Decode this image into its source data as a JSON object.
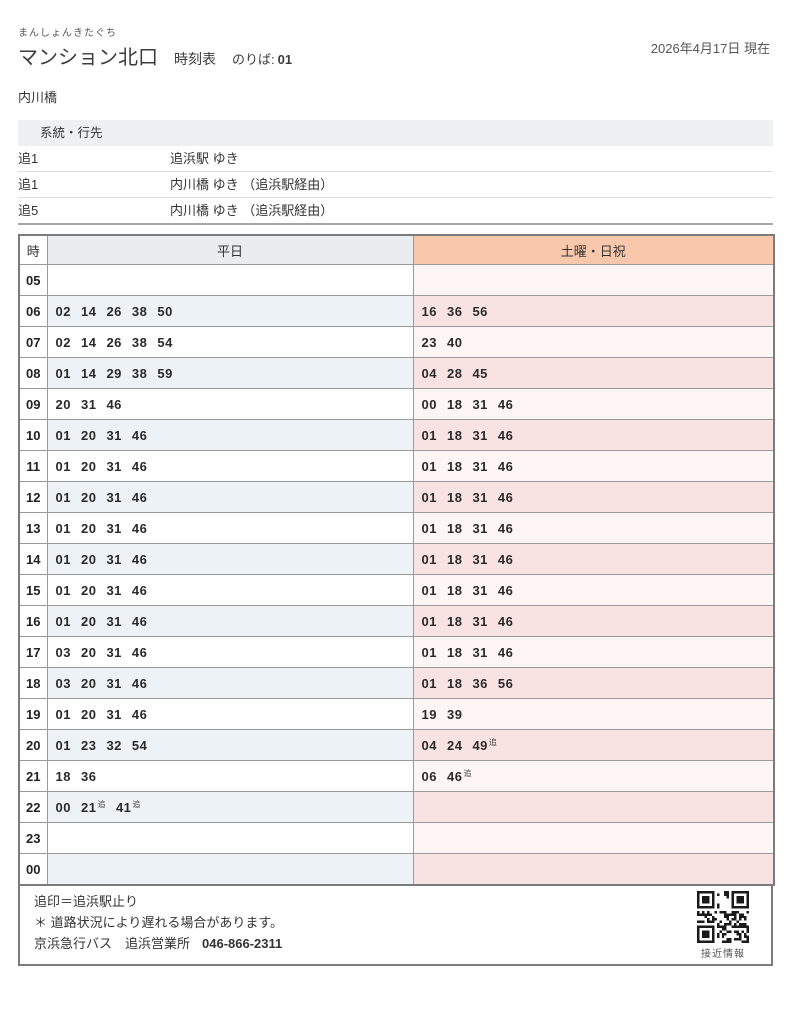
{
  "header": {
    "furigana": "まんしょんきたぐち",
    "title": "マンション北口",
    "subtitle": "時刻表",
    "platform_label": "のりば:",
    "platform_no": "01",
    "date": "2026年4月17日 現在",
    "stop_name": "内川橋"
  },
  "routes": {
    "header": "系統・行先",
    "items": [
      {
        "no": "追1",
        "dest": "追浜駅 ゆき"
      },
      {
        "no": "追1",
        "dest": "内川橋 ゆき （追浜駅経由）"
      },
      {
        "no": "追5",
        "dest": "内川橋 ゆき （追浜駅経由）"
      }
    ]
  },
  "timetable": {
    "col_hour": "時",
    "col_weekday": "平日",
    "col_weekend": "土曜・日祝",
    "mark": "追",
    "rows": [
      {
        "hour": "05",
        "weekday": [],
        "weekend": []
      },
      {
        "hour": "06",
        "weekday": [
          "02",
          "14",
          "26",
          "38",
          "50"
        ],
        "weekend": [
          "16",
          "36",
          "56"
        ]
      },
      {
        "hour": "07",
        "weekday": [
          "02",
          "14",
          "26",
          "38",
          "54"
        ],
        "weekend": [
          "23",
          "40"
        ]
      },
      {
        "hour": "08",
        "weekday": [
          "01",
          "14",
          "29",
          "38",
          "59"
        ],
        "weekend": [
          "04",
          "28",
          "45"
        ]
      },
      {
        "hour": "09",
        "weekday": [
          "20",
          "31",
          "46"
        ],
        "weekend": [
          "00",
          "18",
          "31",
          "46"
        ]
      },
      {
        "hour": "10",
        "weekday": [
          "01",
          "20",
          "31",
          "46"
        ],
        "weekend": [
          "01",
          "18",
          "31",
          "46"
        ]
      },
      {
        "hour": "11",
        "weekday": [
          "01",
          "20",
          "31",
          "46"
        ],
        "weekend": [
          "01",
          "18",
          "31",
          "46"
        ]
      },
      {
        "hour": "12",
        "weekday": [
          "01",
          "20",
          "31",
          "46"
        ],
        "weekend": [
          "01",
          "18",
          "31",
          "46"
        ]
      },
      {
        "hour": "13",
        "weekday": [
          "01",
          "20",
          "31",
          "46"
        ],
        "weekend": [
          "01",
          "18",
          "31",
          "46"
        ]
      },
      {
        "hour": "14",
        "weekday": [
          "01",
          "20",
          "31",
          "46"
        ],
        "weekend": [
          "01",
          "18",
          "31",
          "46"
        ]
      },
      {
        "hour": "15",
        "weekday": [
          "01",
          "20",
          "31",
          "46"
        ],
        "weekend": [
          "01",
          "18",
          "31",
          "46"
        ]
      },
      {
        "hour": "16",
        "weekday": [
          "01",
          "20",
          "31",
          "46"
        ],
        "weekend": [
          "01",
          "18",
          "31",
          "46"
        ]
      },
      {
        "hour": "17",
        "weekday": [
          "03",
          "20",
          "31",
          "46"
        ],
        "weekend": [
          "01",
          "18",
          "31",
          "46"
        ]
      },
      {
        "hour": "18",
        "weekday": [
          "03",
          "20",
          "31",
          "46"
        ],
        "weekend": [
          "01",
          "18",
          "36",
          "56"
        ]
      },
      {
        "hour": "19",
        "weekday": [
          "01",
          "20",
          "31",
          "46"
        ],
        "weekend": [
          "19",
          "39"
        ]
      },
      {
        "hour": "20",
        "weekday": [
          "01",
          "23",
          "32",
          "54"
        ],
        "weekend": [
          "04",
          "24",
          "49追"
        ]
      },
      {
        "hour": "21",
        "weekday": [
          "18",
          "36"
        ],
        "weekend": [
          "06",
          "46追"
        ]
      },
      {
        "hour": "22",
        "weekday": [
          "00",
          "21追",
          "41追"
        ],
        "weekend": []
      },
      {
        "hour": "23",
        "weekday": [],
        "weekend": []
      },
      {
        "hour": "00",
        "weekday": [],
        "weekend": []
      }
    ]
  },
  "footer": {
    "note_mark": "追印＝追浜駅止り",
    "note_delay": "＊ 道路状況により遅れる場合があります。",
    "company": "京浜急行バス　追浜営業所",
    "phone": "046-866-2311",
    "qr_label": "接近情報"
  },
  "colors": {
    "weekend_header_bg": "#f8c7ac",
    "weekday_header_bg": "#e9edf0",
    "weekday_alt_row_bg": "#edf2f6",
    "weekend_row_bg": "#fdf6f4",
    "weekend_alt_row_bg": "#f9e3e2",
    "routes_header_bg": "#eef0f2",
    "table_border": "#7c7c7c"
  }
}
